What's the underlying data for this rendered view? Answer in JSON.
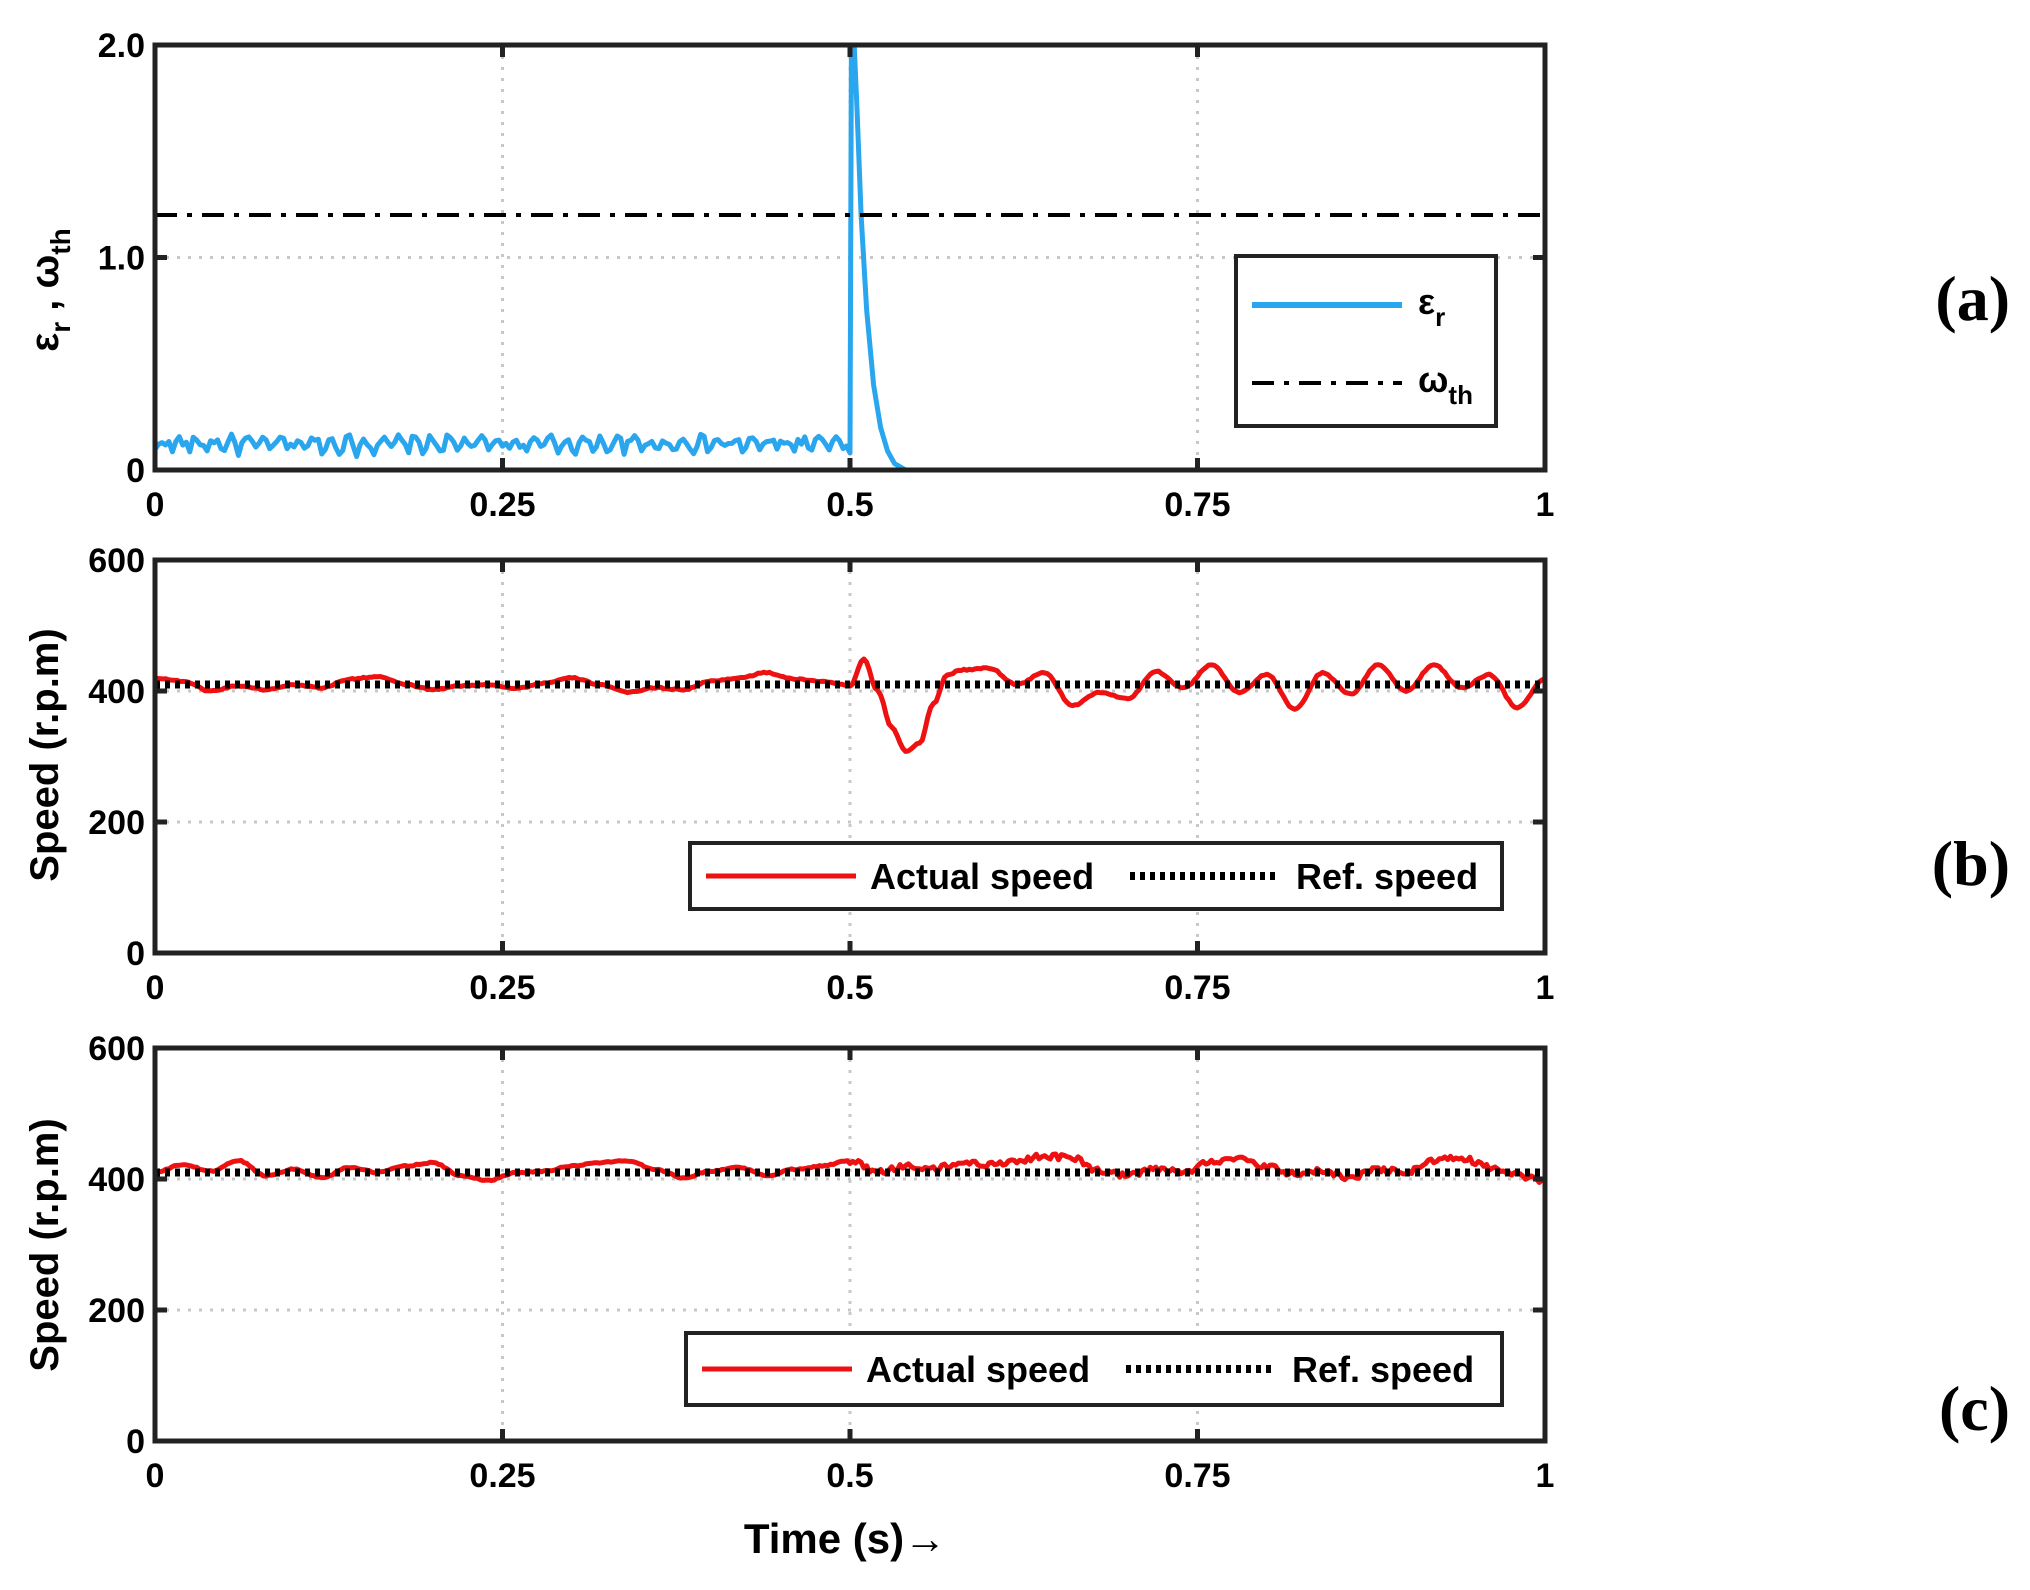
{
  "chart_data": [
    {
      "id": "a",
      "type": "line",
      "panel_label": "(a)",
      "ylabel": {
        "main": "ε",
        "sub": "r",
        "sep": " , ",
        "main2": "ω",
        "sub2": "th"
      },
      "xlim": [
        0,
        1
      ],
      "ylim": [
        0,
        2.0
      ],
      "xticks": [
        0,
        0.25,
        0.5,
        0.75,
        1
      ],
      "xtick_labels": [
        "0",
        "0.25",
        "0.5",
        "0.75",
        "1"
      ],
      "yticks": [
        0,
        1.0,
        2.0
      ],
      "ytick_labels": [
        "0",
        "1.0",
        "2.0"
      ],
      "grid": true,
      "legend_position": "right",
      "series": [
        {
          "name": "ε_r",
          "legend_main": "ε",
          "legend_sub": "r",
          "color": "#2aa6ee",
          "style": "solid",
          "description": "noisy ripple between about 0.02 and 0.2 until t=0.5, spike to 2.0 at t=0.5, decays to 0 by t≈0.53",
          "x": [
            0,
            0.5,
            0.501,
            0.503,
            0.505,
            0.508,
            0.512,
            0.517,
            0.522,
            0.527,
            0.532,
            0.54,
            0.6,
            1.0
          ],
          "y": [
            0.08,
            0.08,
            2.0,
            2.0,
            1.7,
            1.2,
            0.75,
            0.4,
            0.2,
            0.09,
            0.03,
            0.0,
            0.0,
            0.0
          ]
        },
        {
          "name": "ω_th",
          "legend_main": "ω",
          "legend_sub": "th",
          "color": "#000000",
          "style": "dashdot",
          "x": [
            0,
            1
          ],
          "y": [
            1.2,
            1.2
          ]
        }
      ]
    },
    {
      "id": "b",
      "type": "line",
      "panel_label": "(b)",
      "ylabel": "Speed (r.p.m)",
      "xlim": [
        0,
        1
      ],
      "ylim": [
        0,
        600
      ],
      "xticks": [
        0,
        0.25,
        0.5,
        0.75,
        1
      ],
      "xtick_labels": [
        "0",
        "0.25",
        "0.5",
        "0.75",
        "1"
      ],
      "yticks": [
        0,
        200,
        400,
        600
      ],
      "ytick_labels": [
        "0",
        "200",
        "400",
        "600"
      ],
      "grid": true,
      "legend_position": "bottom-right",
      "series": [
        {
          "name": "Actual speed",
          "color": "#ee1111",
          "style": "solid",
          "x": [
            0,
            0.02,
            0.04,
            0.06,
            0.08,
            0.1,
            0.12,
            0.14,
            0.16,
            0.18,
            0.2,
            0.22,
            0.24,
            0.26,
            0.28,
            0.3,
            0.32,
            0.34,
            0.36,
            0.38,
            0.4,
            0.42,
            0.44,
            0.46,
            0.48,
            0.5,
            0.51,
            0.52,
            0.53,
            0.54,
            0.55,
            0.56,
            0.57,
            0.58,
            0.6,
            0.62,
            0.64,
            0.66,
            0.68,
            0.7,
            0.72,
            0.74,
            0.76,
            0.78,
            0.8,
            0.82,
            0.84,
            0.86,
            0.88,
            0.9,
            0.92,
            0.94,
            0.96,
            0.98,
            1.0
          ],
          "y": [
            420,
            415,
            400,
            408,
            402,
            410,
            405,
            418,
            422,
            410,
            402,
            408,
            410,
            404,
            412,
            420,
            410,
            398,
            405,
            402,
            415,
            420,
            428,
            418,
            415,
            408,
            448,
            400,
            345,
            308,
            320,
            380,
            425,
            432,
            435,
            410,
            428,
            378,
            398,
            388,
            430,
            405,
            440,
            398,
            425,
            372,
            428,
            395,
            440,
            400,
            440,
            405,
            425,
            375,
            418
          ]
        },
        {
          "name": "Ref. speed",
          "color": "#000000",
          "style": "dotted",
          "x": [
            0,
            1
          ],
          "y": [
            410,
            410
          ]
        }
      ]
    },
    {
      "id": "c",
      "type": "line",
      "panel_label": "(c)",
      "ylabel": "Speed (r.p.m)",
      "xlabel": "Time (s)→",
      "xlim": [
        0,
        1
      ],
      "ylim": [
        0,
        600
      ],
      "xticks": [
        0,
        0.25,
        0.5,
        0.75,
        1
      ],
      "xtick_labels": [
        "0",
        "0.25",
        "0.5",
        "0.75",
        "1"
      ],
      "yticks": [
        0,
        200,
        400,
        600
      ],
      "ytick_labels": [
        "0",
        "200",
        "400",
        "600"
      ],
      "grid": true,
      "legend_position": "bottom-right",
      "series": [
        {
          "name": "Actual speed",
          "color": "#ee1111",
          "style": "solid",
          "x": [
            0,
            0.02,
            0.04,
            0.06,
            0.08,
            0.1,
            0.12,
            0.14,
            0.16,
            0.18,
            0.2,
            0.22,
            0.24,
            0.26,
            0.28,
            0.3,
            0.32,
            0.34,
            0.36,
            0.38,
            0.4,
            0.42,
            0.44,
            0.46,
            0.48,
            0.5,
            0.52,
            0.54,
            0.56,
            0.58,
            0.6,
            0.62,
            0.64,
            0.66,
            0.68,
            0.7,
            0.72,
            0.74,
            0.76,
            0.78,
            0.8,
            0.82,
            0.84,
            0.86,
            0.88,
            0.9,
            0.92,
            0.94,
            0.96,
            0.98,
            1.0
          ],
          "y": [
            410,
            422,
            412,
            428,
            405,
            415,
            402,
            418,
            410,
            420,
            425,
            405,
            398,
            410,
            412,
            420,
            425,
            428,
            415,
            402,
            412,
            418,
            405,
            415,
            420,
            428,
            410,
            420,
            415,
            425,
            422,
            428,
            435,
            432,
            412,
            405,
            415,
            410,
            428,
            430,
            418,
            408,
            412,
            402,
            415,
            410,
            428,
            432,
            418,
            405,
            398
          ]
        },
        {
          "name": "Ref. speed",
          "color": "#000000",
          "style": "dotted",
          "x": [
            0,
            1
          ],
          "y": [
            410,
            410
          ]
        }
      ]
    }
  ]
}
